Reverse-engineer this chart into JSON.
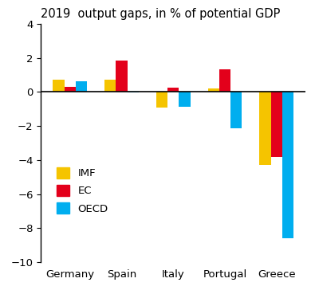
{
  "title": "2019  output gaps, in % of potential GDP",
  "categories": [
    "Germany",
    "Spain",
    "Italy",
    "Portugal",
    "Greece"
  ],
  "series": {
    "IMF": [
      0.7,
      0.7,
      -0.9,
      0.2,
      -4.3
    ],
    "EC": [
      0.3,
      1.85,
      0.25,
      1.35,
      -3.8
    ],
    "OECD": [
      0.65,
      -0.05,
      -0.85,
      -2.15,
      -8.6
    ]
  },
  "colors": {
    "IMF": "#F5C400",
    "EC": "#E3001B",
    "OECD": "#00AEEF"
  },
  "ylim": [
    -10,
    4
  ],
  "yticks": [
    -10,
    -8,
    -6,
    -4,
    -2,
    0,
    2,
    4
  ],
  "legend_labels": [
    "IMF",
    "EC",
    "OECD"
  ],
  "bar_width": 0.22,
  "background_color": "#ffffff",
  "title_fontsize": 10.5
}
